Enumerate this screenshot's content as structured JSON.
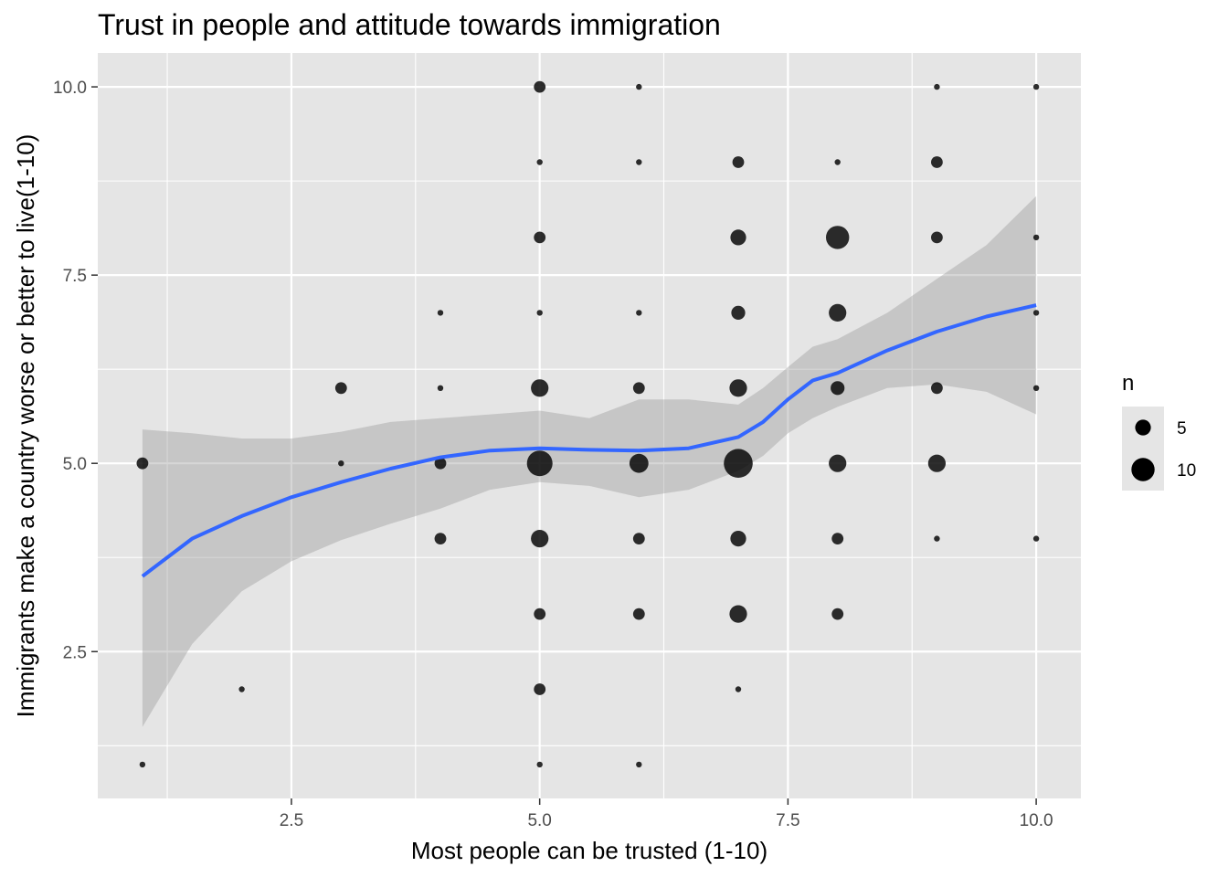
{
  "chart_data": {
    "type": "scatter",
    "title": "Trust in people and attitude towards immigration",
    "xlabel": "Most people can be trusted (1-10)",
    "ylabel": "Immigrants make a country worse or better to live(1-10)",
    "xlim": [
      0.55,
      10.45
    ],
    "ylim": [
      0.55,
      10.45
    ],
    "x_ticks": [
      2.5,
      5.0,
      7.5,
      10.0
    ],
    "y_ticks": [
      2.5,
      5.0,
      7.5,
      10.0
    ],
    "x_tick_labels": [
      "2.5",
      "5.0",
      "7.5",
      "10.0"
    ],
    "y_tick_labels": [
      "2.5",
      "5.0",
      "7.5",
      "10.0"
    ],
    "grid": true,
    "size_legend": {
      "title": "n",
      "placement": "right",
      "entries": [
        {
          "n": 5,
          "label": "5"
        },
        {
          "n": 10,
          "label": "10"
        }
      ]
    },
    "points": [
      {
        "x": 1,
        "y": 1,
        "n": 1
      },
      {
        "x": 1,
        "y": 5,
        "n": 3
      },
      {
        "x": 2,
        "y": 2,
        "n": 1
      },
      {
        "x": 3,
        "y": 5,
        "n": 1
      },
      {
        "x": 3,
        "y": 6,
        "n": 3
      },
      {
        "x": 4,
        "y": 4,
        "n": 3
      },
      {
        "x": 4,
        "y": 5,
        "n": 3
      },
      {
        "x": 4,
        "y": 6,
        "n": 1
      },
      {
        "x": 4,
        "y": 7,
        "n": 1
      },
      {
        "x": 5,
        "y": 1,
        "n": 1
      },
      {
        "x": 5,
        "y": 2,
        "n": 3
      },
      {
        "x": 5,
        "y": 3,
        "n": 3
      },
      {
        "x": 5,
        "y": 4,
        "n": 6
      },
      {
        "x": 5,
        "y": 5,
        "n": 12
      },
      {
        "x": 5,
        "y": 6,
        "n": 6
      },
      {
        "x": 5,
        "y": 7,
        "n": 1
      },
      {
        "x": 5,
        "y": 8,
        "n": 3
      },
      {
        "x": 5,
        "y": 9,
        "n": 1
      },
      {
        "x": 5,
        "y": 10,
        "n": 3
      },
      {
        "x": 6,
        "y": 1,
        "n": 1
      },
      {
        "x": 6,
        "y": 3,
        "n": 3
      },
      {
        "x": 6,
        "y": 4,
        "n": 3
      },
      {
        "x": 6,
        "y": 5,
        "n": 7
      },
      {
        "x": 6,
        "y": 6,
        "n": 3
      },
      {
        "x": 6,
        "y": 7,
        "n": 1
      },
      {
        "x": 6,
        "y": 9,
        "n": 1
      },
      {
        "x": 6,
        "y": 10,
        "n": 1
      },
      {
        "x": 7,
        "y": 2,
        "n": 1
      },
      {
        "x": 7,
        "y": 3,
        "n": 6
      },
      {
        "x": 7,
        "y": 4,
        "n": 5
      },
      {
        "x": 7,
        "y": 5,
        "n": 15
      },
      {
        "x": 7,
        "y": 6,
        "n": 6
      },
      {
        "x": 7,
        "y": 7,
        "n": 4
      },
      {
        "x": 7,
        "y": 8,
        "n": 5
      },
      {
        "x": 7,
        "y": 9,
        "n": 3
      },
      {
        "x": 8,
        "y": 3,
        "n": 3
      },
      {
        "x": 8,
        "y": 4,
        "n": 3
      },
      {
        "x": 8,
        "y": 5,
        "n": 6
      },
      {
        "x": 8,
        "y": 6,
        "n": 4
      },
      {
        "x": 8,
        "y": 7,
        "n": 6
      },
      {
        "x": 8,
        "y": 8,
        "n": 10
      },
      {
        "x": 8,
        "y": 9,
        "n": 1
      },
      {
        "x": 9,
        "y": 4,
        "n": 1
      },
      {
        "x": 9,
        "y": 5,
        "n": 6
      },
      {
        "x": 9,
        "y": 6,
        "n": 3
      },
      {
        "x": 9,
        "y": 8,
        "n": 3
      },
      {
        "x": 9,
        "y": 9,
        "n": 3
      },
      {
        "x": 9,
        "y": 10,
        "n": 1
      },
      {
        "x": 10,
        "y": 4,
        "n": 1
      },
      {
        "x": 10,
        "y": 6,
        "n": 1
      },
      {
        "x": 10,
        "y": 7,
        "n": 1
      },
      {
        "x": 10,
        "y": 8,
        "n": 1
      },
      {
        "x": 10,
        "y": 10,
        "n": 1
      }
    ],
    "smooth": {
      "method": "loess",
      "line_color": "#3366FF",
      "band_color": "#999999",
      "x": [
        1.0,
        1.5,
        2.0,
        2.5,
        3.0,
        3.5,
        4.0,
        4.5,
        5.0,
        5.5,
        6.0,
        6.5,
        7.0,
        7.25,
        7.5,
        7.75,
        8.0,
        8.5,
        9.0,
        9.5,
        10.0
      ],
      "y": [
        3.5,
        4.0,
        4.3,
        4.55,
        4.75,
        4.93,
        5.08,
        5.17,
        5.2,
        5.18,
        5.17,
        5.2,
        5.35,
        5.55,
        5.85,
        6.1,
        6.2,
        6.5,
        6.75,
        6.95,
        7.1
      ],
      "lower": [
        1.5,
        2.6,
        3.3,
        3.7,
        3.98,
        4.2,
        4.4,
        4.65,
        4.75,
        4.7,
        4.55,
        4.65,
        4.9,
        5.1,
        5.4,
        5.6,
        5.75,
        6.0,
        6.05,
        5.95,
        5.65
      ],
      "upper": [
        5.45,
        5.4,
        5.33,
        5.33,
        5.42,
        5.55,
        5.6,
        5.65,
        5.7,
        5.6,
        5.85,
        5.85,
        5.78,
        6.0,
        6.28,
        6.55,
        6.65,
        7.0,
        7.45,
        7.9,
        8.55
      ]
    },
    "colors": {
      "panel_background": "#E5E5E5",
      "grid_line": "#FFFFFF",
      "point": "#000000",
      "legend_key_background": "#E5E5E5"
    }
  }
}
